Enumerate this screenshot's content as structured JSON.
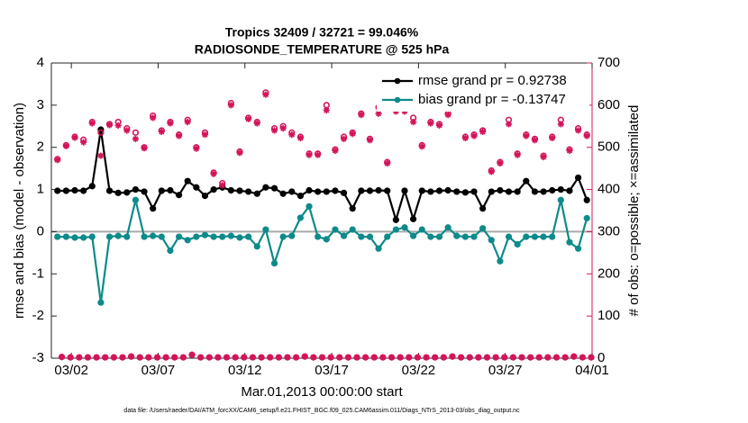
{
  "chart_data": {
    "type": "line",
    "title": "Tropics 32409 / 32721 = 99.046%",
    "subtitle": "RADIOSONDE_TEMPERATURE @ 525 hPa",
    "xlabel": "Mar.01,2013 00:00:00 start",
    "ylabel": "rmse and bias (model - observation)",
    "y2label": "# of obs: o=possible; ×=assimilated",
    "footnote": "data file: /Users/raeder/DAI/ATM_forcXX/CAM6_setup/f.e21.FHIST_BGC.f09_025.CAM6assim.011/Diags_NTrS_2013-03/obs_diag_output.nc",
    "xlim": [
      -0.15,
      31
    ],
    "xticks": [
      {
        "value": 1,
        "label": "03/02"
      },
      {
        "value": 6,
        "label": "03/07"
      },
      {
        "value": 11,
        "label": "03/12"
      },
      {
        "value": 16,
        "label": "03/17"
      },
      {
        "value": 21,
        "label": "03/22"
      },
      {
        "value": 26,
        "label": "03/27"
      },
      {
        "value": 31,
        "label": "04/01"
      }
    ],
    "ylim": [
      -3,
      4
    ],
    "yticks": [
      -3,
      -2,
      -1,
      0,
      1,
      2,
      3,
      4
    ],
    "y2lim": [
      0,
      700
    ],
    "y2ticks": [
      0,
      100,
      200,
      300,
      400,
      500,
      600,
      700
    ],
    "y2color": "#d4145a",
    "legend": "northeast",
    "legend_color": "#1560d4",
    "x": [
      0.2,
      0.7,
      1.2,
      1.7,
      2.2,
      2.7,
      3.2,
      3.7,
      4.2,
      4.7,
      5.2,
      5.7,
      6.2,
      6.7,
      7.2,
      7.7,
      8.2,
      8.7,
      9.2,
      9.7,
      10.2,
      10.7,
      11.2,
      11.7,
      12.2,
      12.7,
      13.2,
      13.7,
      14.2,
      14.7,
      15.2,
      15.7,
      16.2,
      16.7,
      17.2,
      17.7,
      18.2,
      18.7,
      19.2,
      19.7,
      20.2,
      20.7,
      21.2,
      21.7,
      22.2,
      22.7,
      23.2,
      23.7,
      24.2,
      24.7,
      25.2,
      25.7,
      26.2,
      26.7,
      27.2,
      27.7,
      28.2,
      28.7,
      29.2,
      29.7,
      30.2,
      30.7
    ],
    "series": [
      {
        "name": "rmse grand pr = 0.92738",
        "color": "#000000",
        "marker": "dot",
        "values": [
          0.97,
          0.97,
          0.98,
          0.97,
          1.08,
          2.42,
          0.97,
          0.92,
          0.93,
          1.0,
          0.95,
          0.55,
          0.97,
          0.98,
          0.87,
          1.2,
          1.05,
          0.85,
          1.0,
          1.05,
          0.98,
          0.97,
          0.95,
          0.9,
          1.05,
          1.03,
          0.9,
          0.95,
          0.85,
          0.98,
          0.95,
          0.95,
          0.97,
          0.92,
          0.55,
          0.97,
          0.97,
          0.98,
          0.97,
          0.28,
          0.97,
          0.3,
          0.97,
          0.95,
          0.97,
          0.98,
          0.95,
          0.93,
          0.95,
          0.55,
          0.95,
          0.98,
          0.95,
          0.95,
          1.2,
          0.95,
          0.95,
          0.98,
          1.0,
          0.97,
          1.28,
          0.75
        ]
      },
      {
        "name": "bias grand pr = -0.13747",
        "color": "#0e8a8a",
        "marker": "dot",
        "values": [
          -0.12,
          -0.12,
          -0.14,
          -0.14,
          -0.12,
          -1.68,
          -0.12,
          -0.1,
          -0.12,
          0.75,
          -0.12,
          -0.1,
          -0.12,
          -0.45,
          -0.12,
          -0.2,
          -0.12,
          -0.08,
          -0.12,
          -0.12,
          -0.1,
          -0.14,
          -0.12,
          -0.35,
          0.05,
          -0.75,
          -0.12,
          -0.1,
          0.33,
          0.6,
          -0.12,
          -0.18,
          0.05,
          -0.1,
          0.05,
          -0.12,
          -0.12,
          -0.4,
          -0.12,
          0.05,
          0.1,
          -0.1,
          0.05,
          -0.12,
          -0.12,
          0.1,
          -0.1,
          -0.12,
          -0.12,
          0.08,
          -0.2,
          -0.7,
          -0.12,
          -0.3,
          -0.12,
          -0.12,
          -0.12,
          -0.12,
          0.75,
          -0.25,
          -0.4,
          0.32
        ]
      },
      {
        "axis": "y2",
        "color": "#d4145a",
        "marker": "o",
        "values": [
          472,
          505,
          525,
          518,
          560,
          535,
          555,
          560,
          545,
          535,
          500,
          575,
          540,
          560,
          530,
          565,
          500,
          535,
          440,
          415,
          605,
          490,
          570,
          560,
          630,
          545,
          550,
          535,
          525,
          485,
          485,
          600,
          495,
          525,
          535,
          580,
          520,
          595,
          465,
          590,
          600,
          570,
          505,
          560,
          555,
          580,
          605,
          525,
          530,
          540,
          445,
          465,
          565,
          485,
          530,
          520,
          480,
          525,
          565,
          495,
          545,
          530
        ]
      },
      {
        "axis": "y2",
        "color": "#d4145a",
        "marker": "*",
        "values": [
          470,
          503,
          523,
          512,
          557,
          480,
          553,
          552,
          540,
          520,
          498,
          570,
          537,
          557,
          527,
          560,
          497,
          530,
          437,
          410,
          600,
          487,
          567,
          557,
          625,
          540,
          545,
          530,
          522,
          482,
          482,
          588,
          492,
          520,
          532,
          577,
          517,
          580,
          462,
          585,
          585,
          560,
          502,
          557,
          552,
          577,
          600,
          522,
          527,
          537,
          442,
          462,
          555,
          482,
          527,
          517,
          477,
          522,
          555,
          492,
          540,
          527
        ]
      },
      {
        "axis": "y2",
        "color": "#d4145a",
        "marker": "o*",
        "x": [
          0.45,
          0.95,
          1.45,
          1.95,
          2.45,
          2.95,
          3.45,
          3.95,
          4.45,
          4.95,
          5.45,
          5.95,
          6.45,
          6.95,
          7.45,
          7.95,
          8.45,
          8.95,
          9.45,
          9.95,
          10.45,
          10.95,
          11.45,
          11.95,
          12.45,
          12.95,
          13.45,
          13.95,
          14.45,
          14.95,
          15.45,
          15.95,
          16.45,
          16.95,
          17.45,
          17.95,
          18.45,
          18.95,
          19.45,
          19.95,
          20.45,
          20.95,
          21.45,
          21.95,
          22.45,
          22.95,
          23.45,
          23.95,
          24.45,
          24.95,
          25.45,
          25.95,
          26.45,
          26.95,
          27.45,
          27.95,
          28.45,
          28.95,
          29.45,
          29.95,
          30.45,
          30.95
        ],
        "values": [
          3,
          2,
          2,
          2,
          2,
          2,
          2,
          2,
          4,
          2,
          2,
          2,
          2,
          2,
          2,
          8,
          2,
          2,
          2,
          2,
          2,
          2,
          2,
          2,
          2,
          2,
          2,
          2,
          4,
          2,
          2,
          2,
          2,
          2,
          2,
          2,
          2,
          2,
          2,
          2,
          2,
          2,
          2,
          2,
          2,
          4,
          2,
          2,
          2,
          2,
          2,
          2,
          2,
          2,
          2,
          2,
          2,
          2,
          2,
          4,
          2,
          2
        ]
      }
    ]
  }
}
